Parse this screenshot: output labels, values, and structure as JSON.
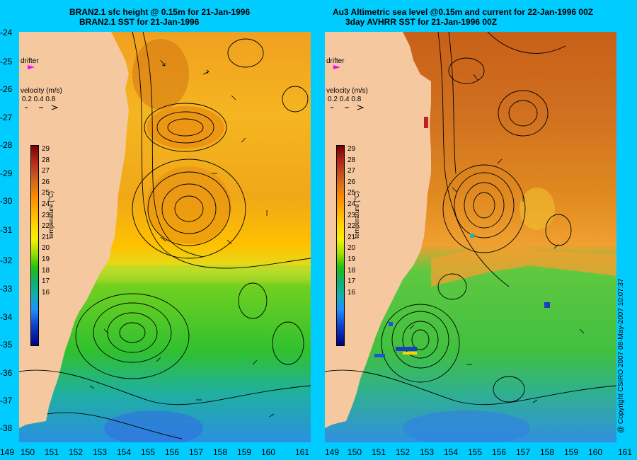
{
  "left_panel": {
    "title_line1": "BRAN2.1 sfc height @ 0.15m for 21-Jan-1996",
    "title_line2": "BRAN2.1 SST for 21-Jan-1996",
    "drifter_label": "drifter",
    "velocity_label": "velocity (m/s)",
    "velocity_scale": "0.2 0.4 0.8",
    "temp_label": "temperature (°C)"
  },
  "right_panel": {
    "title_line1": "Au3 Altimetric sea level  @0.15m and current for 22-Jan-1996 00Z",
    "title_line2": "3day AVHRR SST for 21-Jan-1996 00Z",
    "drifter_label": "drifter",
    "velocity_label": "velocity (m/s)",
    "velocity_scale": "0.2 0.4 0.8",
    "temp_label": "temperature (°C)"
  },
  "latitude_labels": [
    "-24",
    "-25",
    "-26",
    "-27",
    "-28",
    "-29",
    "-30",
    "-31",
    "-32",
    "-33",
    "-34",
    "-35",
    "-36",
    "-37",
    "-38"
  ],
  "longitude_labels": [
    "149",
    "150",
    "151",
    "152",
    "153",
    "154",
    "155",
    "156",
    "157",
    "158",
    "159",
    "160",
    "161"
  ],
  "colorbar_ticks": [
    "29",
    "28",
    "27",
    "26",
    "25",
    "24",
    "23",
    "22",
    "21",
    "20",
    "19",
    "18",
    "17",
    "16"
  ],
  "copyright": "@ Copyright CSIRO 2007  08-May-2007 10:07:37",
  "colors": {
    "background": "#00ccff",
    "land": "#f5c8a0",
    "drifter": "#ff00ff"
  }
}
